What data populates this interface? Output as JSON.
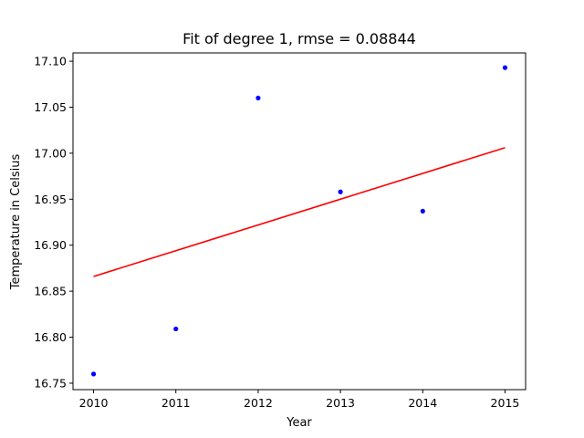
{
  "chart_data": {
    "type": "scatter",
    "title": "Fit of degree 1, rmse = 0.08844",
    "xlabel": "Year",
    "ylabel": "Temperature in Celsius",
    "xlim": [
      2009.75,
      2015.25
    ],
    "ylim": [
      16.743,
      17.109
    ],
    "x_ticks": [
      2010,
      2011,
      2012,
      2013,
      2014,
      2015
    ],
    "x_tick_labels": [
      "2010",
      "2011",
      "2012",
      "2013",
      "2014",
      "2015"
    ],
    "y_ticks": [
      16.75,
      16.8,
      16.85,
      16.9,
      16.95,
      17.0,
      17.05,
      17.1
    ],
    "y_tick_labels": [
      "16.75",
      "16.80",
      "16.85",
      "16.90",
      "16.95",
      "17.00",
      "17.05",
      "17.10"
    ],
    "grid": false,
    "legend": "none",
    "series": [
      {
        "kind": "scatter",
        "color": "#0000ff",
        "x": [
          2010,
          2011,
          2012,
          2013,
          2014,
          2015
        ],
        "y": [
          16.76,
          16.809,
          17.06,
          16.958,
          16.937,
          17.093
        ]
      },
      {
        "kind": "line",
        "color": "#ff0000",
        "x": [
          2010,
          2015
        ],
        "y": [
          16.866,
          17.006
        ]
      }
    ]
  }
}
